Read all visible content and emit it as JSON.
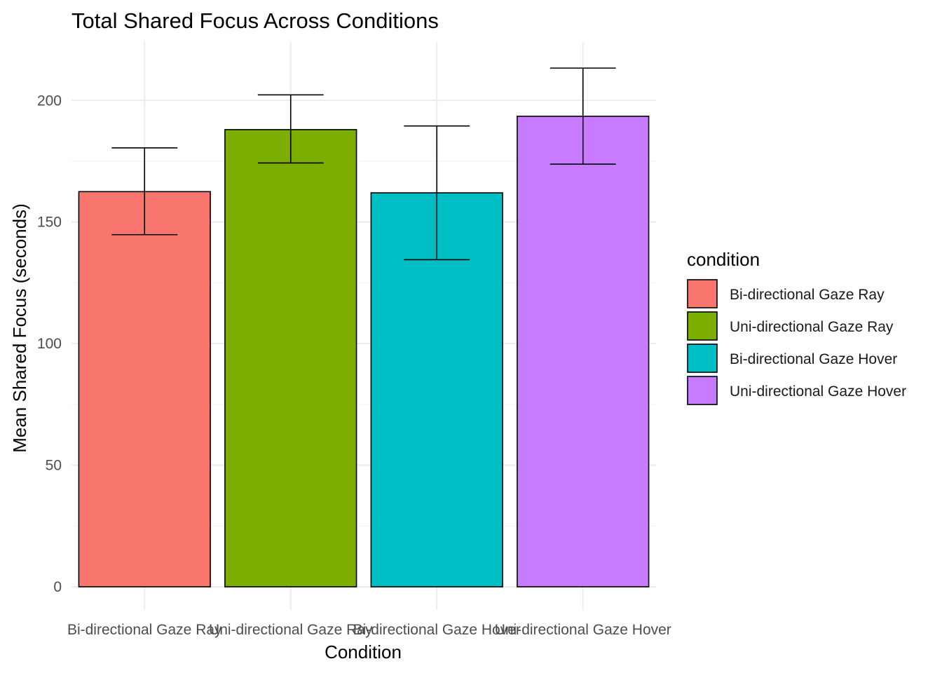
{
  "chart_data": {
    "type": "bar",
    "title": "Total Shared Focus Across Conditions",
    "xlabel": "Condition",
    "ylabel": "Mean Shared Focus (seconds)",
    "categories": [
      "Bi-directional Gaze Ray",
      "Uni-directional Gaze Ray",
      "Bi-directional Gaze Hover",
      "Uni-directional Gaze Hover"
    ],
    "values": [
      162.5,
      188.0,
      162.0,
      193.5
    ],
    "error_lower": [
      144.8,
      174.3,
      134.5,
      173.8
    ],
    "error_upper": [
      180.5,
      202.3,
      189.5,
      213.3
    ],
    "colors": [
      "#F8766D",
      "#7CAE00",
      "#00BFC4",
      "#C77CFF"
    ],
    "ylim": [
      -9.5,
      224
    ],
    "yticks": [
      0,
      50,
      100,
      150,
      200
    ],
    "grid": true,
    "legend": {
      "title": "condition",
      "placement": "right",
      "entries": [
        "Bi-directional Gaze Ray",
        "Uni-directional Gaze Ray",
        "Bi-directional Gaze Hover",
        "Uni-directional Gaze Hover"
      ]
    }
  }
}
